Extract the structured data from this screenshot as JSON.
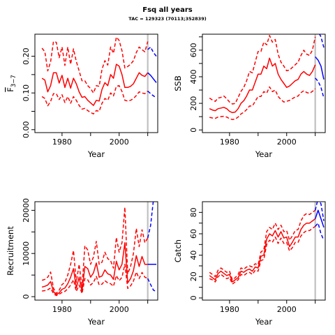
{
  "header": {
    "title": "Fsq all years",
    "subtitle": "TAC = 129323 (70113;352839)"
  },
  "colors": {
    "historic": "#ff0000",
    "forecast": "#0000ff",
    "marker": "#c0c0c0"
  },
  "chart_data": [
    {
      "type": "line",
      "xlabel": "Year",
      "ylabel": "F̅3−7",
      "ylabel_main": "F",
      "ylabel_sub": "3−7",
      "xlim": [
        1970.5,
        2013.5
      ],
      "ylim": [
        -0.008,
        0.26
      ],
      "xticks": [
        1980,
        1990,
        2000,
        2010
      ],
      "xtick_labels": [
        "1980",
        "2000"
      ],
      "yticks": [
        0.0,
        0.05,
        0.1,
        0.15,
        0.2
      ],
      "ytick_labels": [
        "0.00",
        "0.10",
        "0.20"
      ],
      "marker_year": 2010,
      "x": [
        1973,
        1974,
        1975,
        1976,
        1977,
        1978,
        1979,
        1980,
        1981,
        1982,
        1983,
        1984,
        1985,
        1986,
        1987,
        1988,
        1989,
        1990,
        1991,
        1992,
        1993,
        1994,
        1995,
        1996,
        1997,
        1998,
        1999,
        2000,
        2001,
        2002,
        2003,
        2004,
        2005,
        2006,
        2007,
        2008,
        2009,
        2010
      ],
      "series": [
        {
          "role": "estimate",
          "values": [
            0.14,
            0.135,
            0.103,
            0.12,
            0.155,
            0.155,
            0.127,
            0.148,
            0.115,
            0.14,
            0.113,
            0.14,
            0.125,
            0.103,
            0.088,
            0.09,
            0.08,
            0.073,
            0.066,
            0.08,
            0.078,
            0.11,
            0.128,
            0.12,
            0.15,
            0.14,
            0.178,
            0.173,
            0.15,
            0.115,
            0.115,
            0.118,
            0.125,
            0.14,
            0.155,
            0.148,
            0.145,
            0.155
          ]
        },
        {
          "role": "upper",
          "values": [
            0.222,
            0.212,
            0.16,
            0.185,
            0.24,
            0.238,
            0.196,
            0.225,
            0.175,
            0.225,
            0.178,
            0.22,
            0.186,
            0.16,
            0.133,
            0.133,
            0.12,
            0.112,
            0.1,
            0.12,
            0.118,
            0.165,
            0.188,
            0.176,
            0.225,
            0.208,
            0.252,
            0.243,
            0.215,
            0.168,
            0.172,
            0.178,
            0.188,
            0.21,
            0.225,
            0.218,
            0.212,
            0.24
          ]
        },
        {
          "role": "lower",
          "values": [
            0.09,
            0.085,
            0.065,
            0.077,
            0.098,
            0.098,
            0.082,
            0.095,
            0.074,
            0.09,
            0.072,
            0.09,
            0.08,
            0.066,
            0.056,
            0.058,
            0.052,
            0.047,
            0.043,
            0.052,
            0.05,
            0.072,
            0.085,
            0.08,
            0.1,
            0.092,
            0.118,
            0.12,
            0.104,
            0.08,
            0.078,
            0.08,
            0.085,
            0.093,
            0.103,
            0.1,
            0.098,
            0.105
          ]
        }
      ],
      "forecast_x": [
        2010,
        2011,
        2012,
        2013
      ],
      "forecast": [
        {
          "role": "estimate",
          "values": [
            0.155,
            0.148,
            0.138,
            0.128
          ]
        },
        {
          "role": "upper",
          "values": [
            0.218,
            0.225,
            0.21,
            0.2
          ]
        },
        {
          "role": "lower",
          "values": [
            0.105,
            0.098,
            0.092,
            0.087
          ]
        }
      ]
    },
    {
      "type": "line",
      "xlabel": "Year",
      "ylabel": "SSB",
      "xlim": [
        1970.5,
        2013.5
      ],
      "ylim": [
        -20,
        720
      ],
      "xticks": [
        1980,
        1990,
        2000,
        2010
      ],
      "xtick_labels": [
        "1980",
        "2000"
      ],
      "yticks": [
        0,
        100,
        200,
        300,
        400,
        500,
        600,
        700
      ],
      "ytick_labels": [
        "0",
        "200",
        "400",
        "600"
      ],
      "marker_year": 2010,
      "x": [
        1973,
        1974,
        1975,
        1976,
        1977,
        1978,
        1979,
        1980,
        1981,
        1982,
        1983,
        1984,
        1985,
        1986,
        1987,
        1988,
        1989,
        1990,
        1991,
        1992,
        1993,
        1994,
        1995,
        1996,
        1997,
        1998,
        1999,
        2000,
        2001,
        2002,
        2003,
        2004,
        2005,
        2006,
        2007,
        2008,
        2009,
        2010
      ],
      "series": [
        {
          "role": "estimate",
          "values": [
            160,
            150,
            145,
            160,
            165,
            170,
            160,
            140,
            130,
            135,
            160,
            200,
            220,
            255,
            300,
            300,
            360,
            420,
            420,
            480,
            460,
            540,
            480,
            500,
            420,
            380,
            350,
            320,
            330,
            350,
            370,
            380,
            420,
            440,
            420,
            410,
            440,
            490
          ]
        },
        {
          "role": "upper",
          "values": [
            240,
            225,
            215,
            240,
            245,
            255,
            235,
            210,
            195,
            200,
            245,
            290,
            320,
            370,
            440,
            430,
            510,
            590,
            590,
            660,
            640,
            710,
            660,
            680,
            570,
            510,
            480,
            445,
            450,
            470,
            490,
            510,
            560,
            600,
            570,
            560,
            600,
            700
          ]
        },
        {
          "role": "lower",
          "values": [
            95,
            90,
            87,
            97,
            100,
            103,
            97,
            85,
            78,
            82,
            97,
            120,
            133,
            153,
            180,
            180,
            216,
            252,
            252,
            288,
            276,
            324,
            288,
            300,
            252,
            228,
            210,
            215,
            222,
            235,
            248,
            255,
            280,
            295,
            282,
            275,
            290,
            310
          ]
        }
      ],
      "forecast_x": [
        2010,
        2011,
        2012,
        2013
      ],
      "forecast": [
        {
          "role": "estimate",
          "values": [
            550,
            525,
            480,
            380
          ]
        },
        {
          "role": "upper",
          "values": [
            730,
            740,
            700,
            620
          ]
        },
        {
          "role": "lower",
          "values": [
            390,
            365,
            320,
            240
          ]
        }
      ]
    },
    {
      "type": "line",
      "xlabel": "Year",
      "ylabel": "Recruitment",
      "xlim": [
        1970.5,
        2013.5
      ],
      "ylim": [
        -800,
        22000
      ],
      "xticks": [
        1980,
        1990,
        2000,
        2010
      ],
      "xtick_labels": [
        "1980",
        "2000"
      ],
      "yticks": [
        0,
        5000,
        10000,
        15000,
        20000
      ],
      "ytick_labels": [
        "0",
        "10000",
        "20000"
      ],
      "marker_year": 2010,
      "x": [
        1973,
        1974,
        1975,
        1976,
        1977,
        1978,
        1979,
        1980,
        1981,
        1982,
        1983,
        1984,
        1985,
        1986,
        1987,
        1988,
        1989,
        1990,
        1991,
        1992,
        1993,
        1994,
        1995,
        1996,
        1997,
        1998,
        1999,
        2000,
        2001,
        2002,
        2003,
        2004,
        2005,
        2006,
        2007,
        2008,
        2009,
        2010
      ],
      "series": [
        {
          "role": "estimate",
          "values": [
            2200,
            2400,
            2700,
            3500,
            1200,
            400,
            900,
            1700,
            2000,
            3000,
            4500,
            6500,
            2000,
            4500,
            1200,
            7000,
            6500,
            4500,
            5500,
            7800,
            4500,
            4800,
            6200,
            5300,
            5000,
            4000,
            8200,
            6200,
            7500,
            12500,
            3200,
            4200,
            6000,
            9500,
            7000,
            9300,
            7500,
            7500
          ]
        },
        {
          "role": "upper",
          "values": [
            3800,
            4000,
            4500,
            5700,
            2000,
            700,
            1500,
            2800,
            3300,
            5000,
            7500,
            10700,
            3300,
            7500,
            2000,
            11800,
            10800,
            7500,
            9200,
            12800,
            7500,
            8000,
            10300,
            8800,
            8300,
            6600,
            13700,
            10300,
            12500,
            20700,
            5300,
            7000,
            10000,
            15800,
            11600,
            15500,
            12500,
            13600
          ]
        },
        {
          "role": "lower",
          "values": [
            1300,
            1400,
            1600,
            2000,
            700,
            250,
            550,
            1000,
            1200,
            1800,
            2700,
            3900,
            1200,
            2700,
            700,
            4200,
            3900,
            2700,
            3300,
            4700,
            2700,
            2900,
            3700,
            3200,
            3000,
            2400,
            4900,
            3700,
            4500,
            7500,
            1900,
            2500,
            3600,
            5700,
            4200,
            5600,
            4500,
            4200
          ]
        }
      ],
      "forecast_x": [
        2010,
        2011,
        2012,
        2013
      ],
      "forecast": [
        {
          "role": "estimate",
          "values": [
            7500,
            7500,
            7500,
            7500
          ]
        },
        {
          "role": "upper",
          "values": [
            13600,
            16500,
            22500,
            23000
          ]
        },
        {
          "role": "lower",
          "values": [
            4200,
            2800,
            1500,
            1200
          ]
        }
      ]
    },
    {
      "type": "line",
      "xlabel": "Year",
      "ylabel": "Catch",
      "xlim": [
        1970.5,
        2013.5
      ],
      "ylim": [
        -2,
        90
      ],
      "xticks": [
        1980,
        1990,
        2000,
        2010
      ],
      "xtick_labels": [
        "1980",
        "2000"
      ],
      "yticks": [
        0,
        10,
        20,
        30,
        40,
        50,
        60,
        70,
        80
      ],
      "ytick_labels": [
        "0",
        "20",
        "40",
        "60",
        "80"
      ],
      "marker_year": 2010,
      "x": [
        1973,
        1974,
        1975,
        1976,
        1977,
        1978,
        1979,
        1980,
        1981,
        1982,
        1983,
        1984,
        1985,
        1986,
        1987,
        1988,
        1989,
        1990,
        1991,
        1992,
        1993,
        1994,
        1995,
        1996,
        1997,
        1998,
        1999,
        2000,
        2001,
        2002,
        2003,
        2004,
        2005,
        2006,
        2007,
        2008,
        2009,
        2010
      ],
      "series": [
        {
          "role": "estimate",
          "values": [
            21,
            19,
            17,
            23,
            25,
            23,
            21,
            22,
            15,
            17,
            19,
            25,
            24,
            26,
            27,
            25,
            29,
            28,
            39,
            40,
            55,
            60,
            58,
            63,
            57,
            62,
            56,
            57,
            48,
            52,
            57,
            57,
            64,
            68,
            70,
            70,
            72,
            74
          ]
        },
        {
          "role": "upper",
          "values": [
            24,
            22,
            20,
            26,
            28,
            26,
            24,
            25,
            17,
            19,
            22,
            28,
            27,
            29,
            30,
            29,
            32,
            31,
            43,
            45,
            62,
            66,
            64,
            70,
            64,
            68,
            62,
            63,
            54,
            58,
            63,
            64,
            72,
            77,
            79,
            78,
            80,
            82
          ]
        },
        {
          "role": "lower",
          "values": [
            18,
            17,
            15,
            20,
            22,
            20,
            18,
            19,
            13,
            15,
            17,
            22,
            21,
            23,
            24,
            22,
            26,
            25,
            35,
            36,
            50,
            54,
            52,
            57,
            51,
            56,
            51,
            52,
            44,
            47,
            52,
            52,
            58,
            61,
            63,
            63,
            65,
            67
          ]
        }
      ],
      "forecast_x": [
        2010,
        2011,
        2012,
        2013
      ],
      "forecast": [
        {
          "role": "estimate",
          "values": [
            74,
            82,
            74,
            66
          ]
        },
        {
          "role": "upper",
          "values": [
            82,
            93,
            88,
            72
          ]
        },
        {
          "role": "lower",
          "values": [
            67,
            70,
            60,
            54
          ]
        }
      ]
    }
  ]
}
